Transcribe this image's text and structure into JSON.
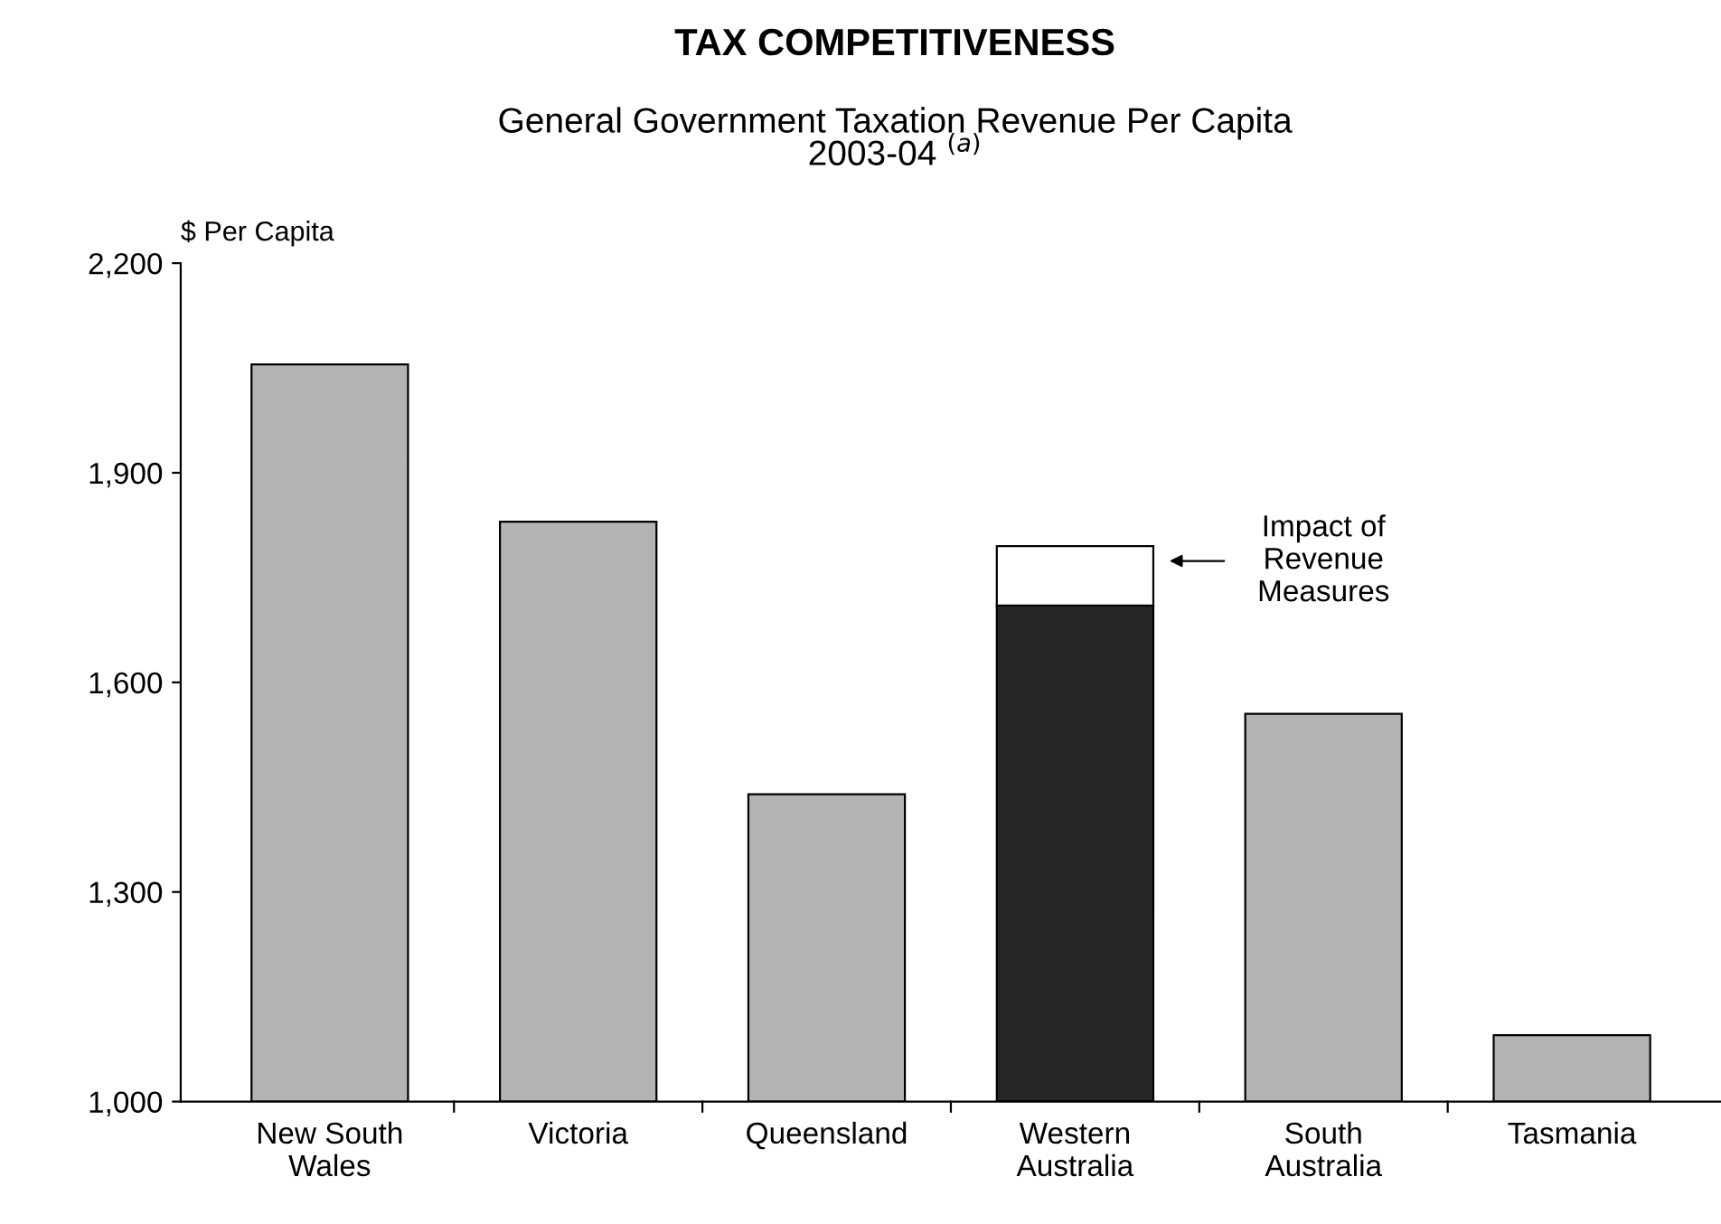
{
  "chart_data": {
    "type": "bar",
    "title": "TAX COMPETITIVENESS",
    "subtitle": "General Government Taxation Revenue Per Capita\n2003-04 $^{(a)}$",
    "ylabel": "$ Per Capita",
    "categories": [
      "New South\nWales",
      "Victoria",
      "Queensland",
      "Western\nAustralia",
      "South\nAustralia",
      "Tasmania"
    ],
    "series": [
      {
        "colors": [
          "#b4b4b4",
          "#b4b4b4",
          "#b4b4b4",
          "#262626",
          "#b4b4b4",
          "#b4b4b4"
        ],
        "values": [
          2055,
          1830,
          1440,
          1710,
          1555,
          1095
        ]
      },
      {
        "color": "#ffffff",
        "values": [
          null,
          null,
          null,
          85,
          null,
          null
        ],
        "base": [
          null,
          null,
          null,
          1710,
          null,
          null
        ]
      }
    ],
    "ylim": [
      1000,
      2200
    ],
    "yticks": [
      {
        "value": 1000,
        "label": "1,000"
      },
      {
        "value": 1300,
        "label": "1,300"
      },
      {
        "value": 1600,
        "label": "1,600"
      },
      {
        "value": 1900,
        "label": "1,900"
      },
      {
        "value": 2200,
        "label": "2,200"
      }
    ],
    "grid": false,
    "legend": false,
    "annotations": [
      "Impact of\nRevenue\nMeasures"
    ]
  }
}
